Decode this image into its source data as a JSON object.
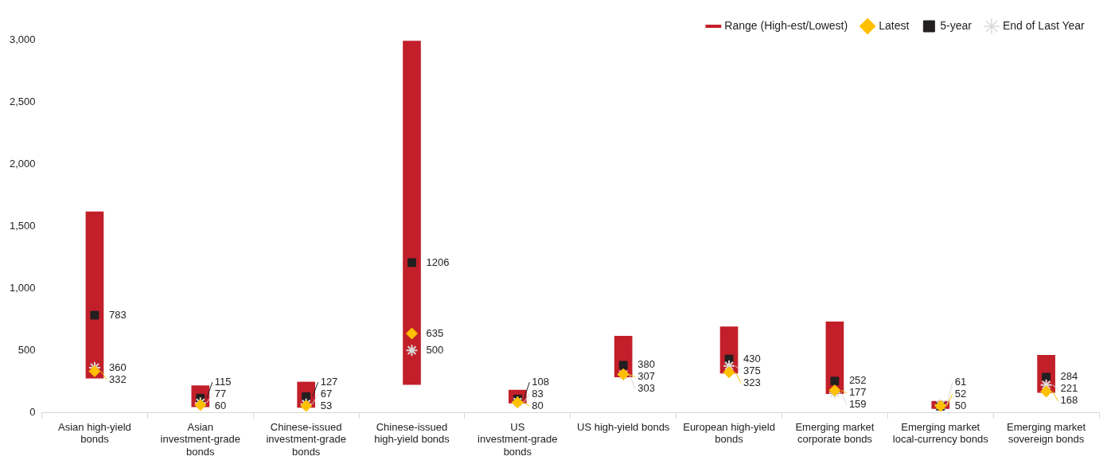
{
  "chart_data": {
    "type": "bar",
    "categories": [
      "Asian high-yield bonds",
      "Asian investment-grade bonds",
      "Chinese-issued investment-grade bonds",
      "Chinese-issued high-yield bonds",
      "US investment-grade bonds",
      "US high-yield bonds",
      "European high-yield bonds",
      "Emerging market corporate bonds",
      "Emerging market local-currency bonds",
      "Emerging market sovereign bonds"
    ],
    "ylim": [
      0,
      3000
    ],
    "yticks": [
      0,
      500,
      {
        "value": 1000,
        "label": "1,000"
      },
      {
        "value": 1500,
        "label": "1,500"
      },
      {
        "value": 2000,
        "label": "2,000"
      },
      {
        "value": 2500,
        "label": "2,500"
      },
      {
        "value": 3000,
        "label": "3,000"
      }
    ],
    "grid": false,
    "legend": "top right",
    "series": [
      {
        "name": "Range (High-est/Lowest)",
        "type": "bar",
        "color": "#c21f2a",
        "base": [
          275,
          45,
          40,
          225,
          75,
          285,
          315,
          150,
          30,
          160
        ],
        "values": [
          1340,
          170,
          205,
          2765,
          105,
          330,
          375,
          580,
          60,
          300
        ]
      },
      {
        "name": "Latest",
        "type": "scatter",
        "marker": "diamond",
        "color": "#ffc000",
        "values": [
          332,
          60,
          53,
          635,
          80,
          307,
          323,
          177,
          52,
          168
        ],
        "value_labels": [
          "332",
          "60",
          "53",
          "635",
          "80",
          "307",
          "323",
          "177",
          "52",
          "168"
        ]
      },
      {
        "name": "5-year",
        "type": "scatter",
        "marker": "square",
        "color": "#231f20",
        "values": [
          783,
          115,
          127,
          1206,
          108,
          380,
          430,
          252,
          50,
          284
        ],
        "value_labels": [
          "783",
          "115",
          "127",
          "1206",
          "108",
          "380",
          "430",
          "252",
          "50",
          "284"
        ]
      },
      {
        "name": "End of Last Year",
        "type": "scatter",
        "marker": "cross",
        "color": "#d9d9d9",
        "values": [
          360,
          77,
          67,
          500,
          83,
          303,
          375,
          159,
          61,
          221
        ],
        "value_labels": [
          "360",
          "77",
          "67",
          "500",
          "83",
          "303",
          "375",
          "159",
          "61",
          "221"
        ]
      }
    ]
  }
}
